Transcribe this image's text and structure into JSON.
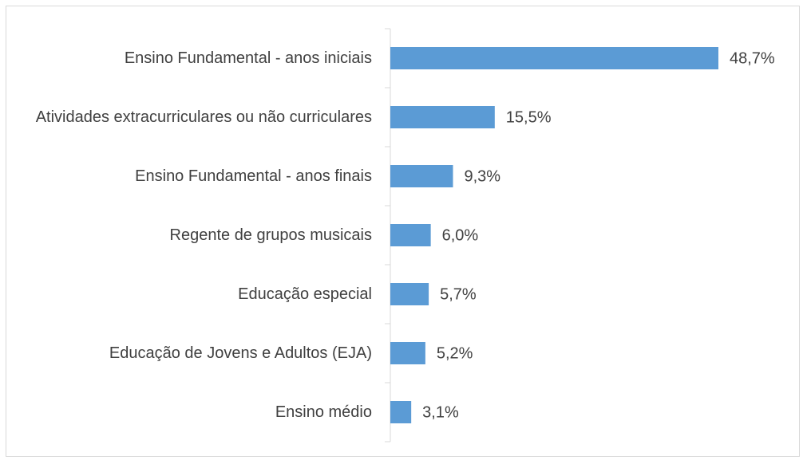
{
  "chart_data": {
    "type": "bar",
    "orientation": "horizontal",
    "categories": [
      "Ensino Fundamental - anos iniciais",
      "Atividades extracurriculares ou não curriculares",
      "Ensino Fundamental - anos finais",
      "Regente de grupos musicais",
      "Educação especial",
      "Educação de Jovens e Adultos (EJA)",
      "Ensino médio"
    ],
    "values": [
      48.7,
      15.5,
      9.3,
      6.0,
      5.7,
      5.2,
      3.1
    ],
    "value_labels": [
      "48,7%",
      "15,5%",
      "9,3%",
      "6,0%",
      "5,7%",
      "5,2%",
      "3,1%"
    ],
    "color": "#5b9bd5"
  }
}
